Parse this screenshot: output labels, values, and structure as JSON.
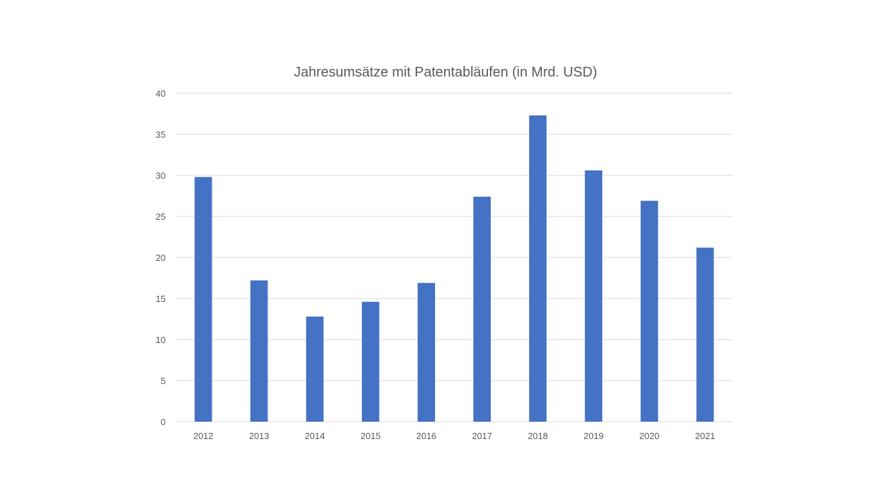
{
  "chart_data": {
    "type": "bar",
    "title": "Jahresumsätze mit Patentabläufen (in Mrd. USD)",
    "xlabel": "",
    "ylabel": "",
    "categories": [
      "2012",
      "2013",
      "2014",
      "2015",
      "2016",
      "2017",
      "2018",
      "2019",
      "2020",
      "2021"
    ],
    "values": [
      29.8,
      17.2,
      12.8,
      14.6,
      16.9,
      27.4,
      37.3,
      30.6,
      26.9,
      21.2
    ],
    "ylim": [
      0,
      40
    ],
    "yticks": [
      "0",
      "5",
      "10",
      "15",
      "20",
      "25",
      "30",
      "35",
      "40"
    ],
    "grid": true,
    "legend": "none",
    "bar_color": "#4472C4",
    "grid_color": "#D9D9D9",
    "text_color": "#595959"
  }
}
